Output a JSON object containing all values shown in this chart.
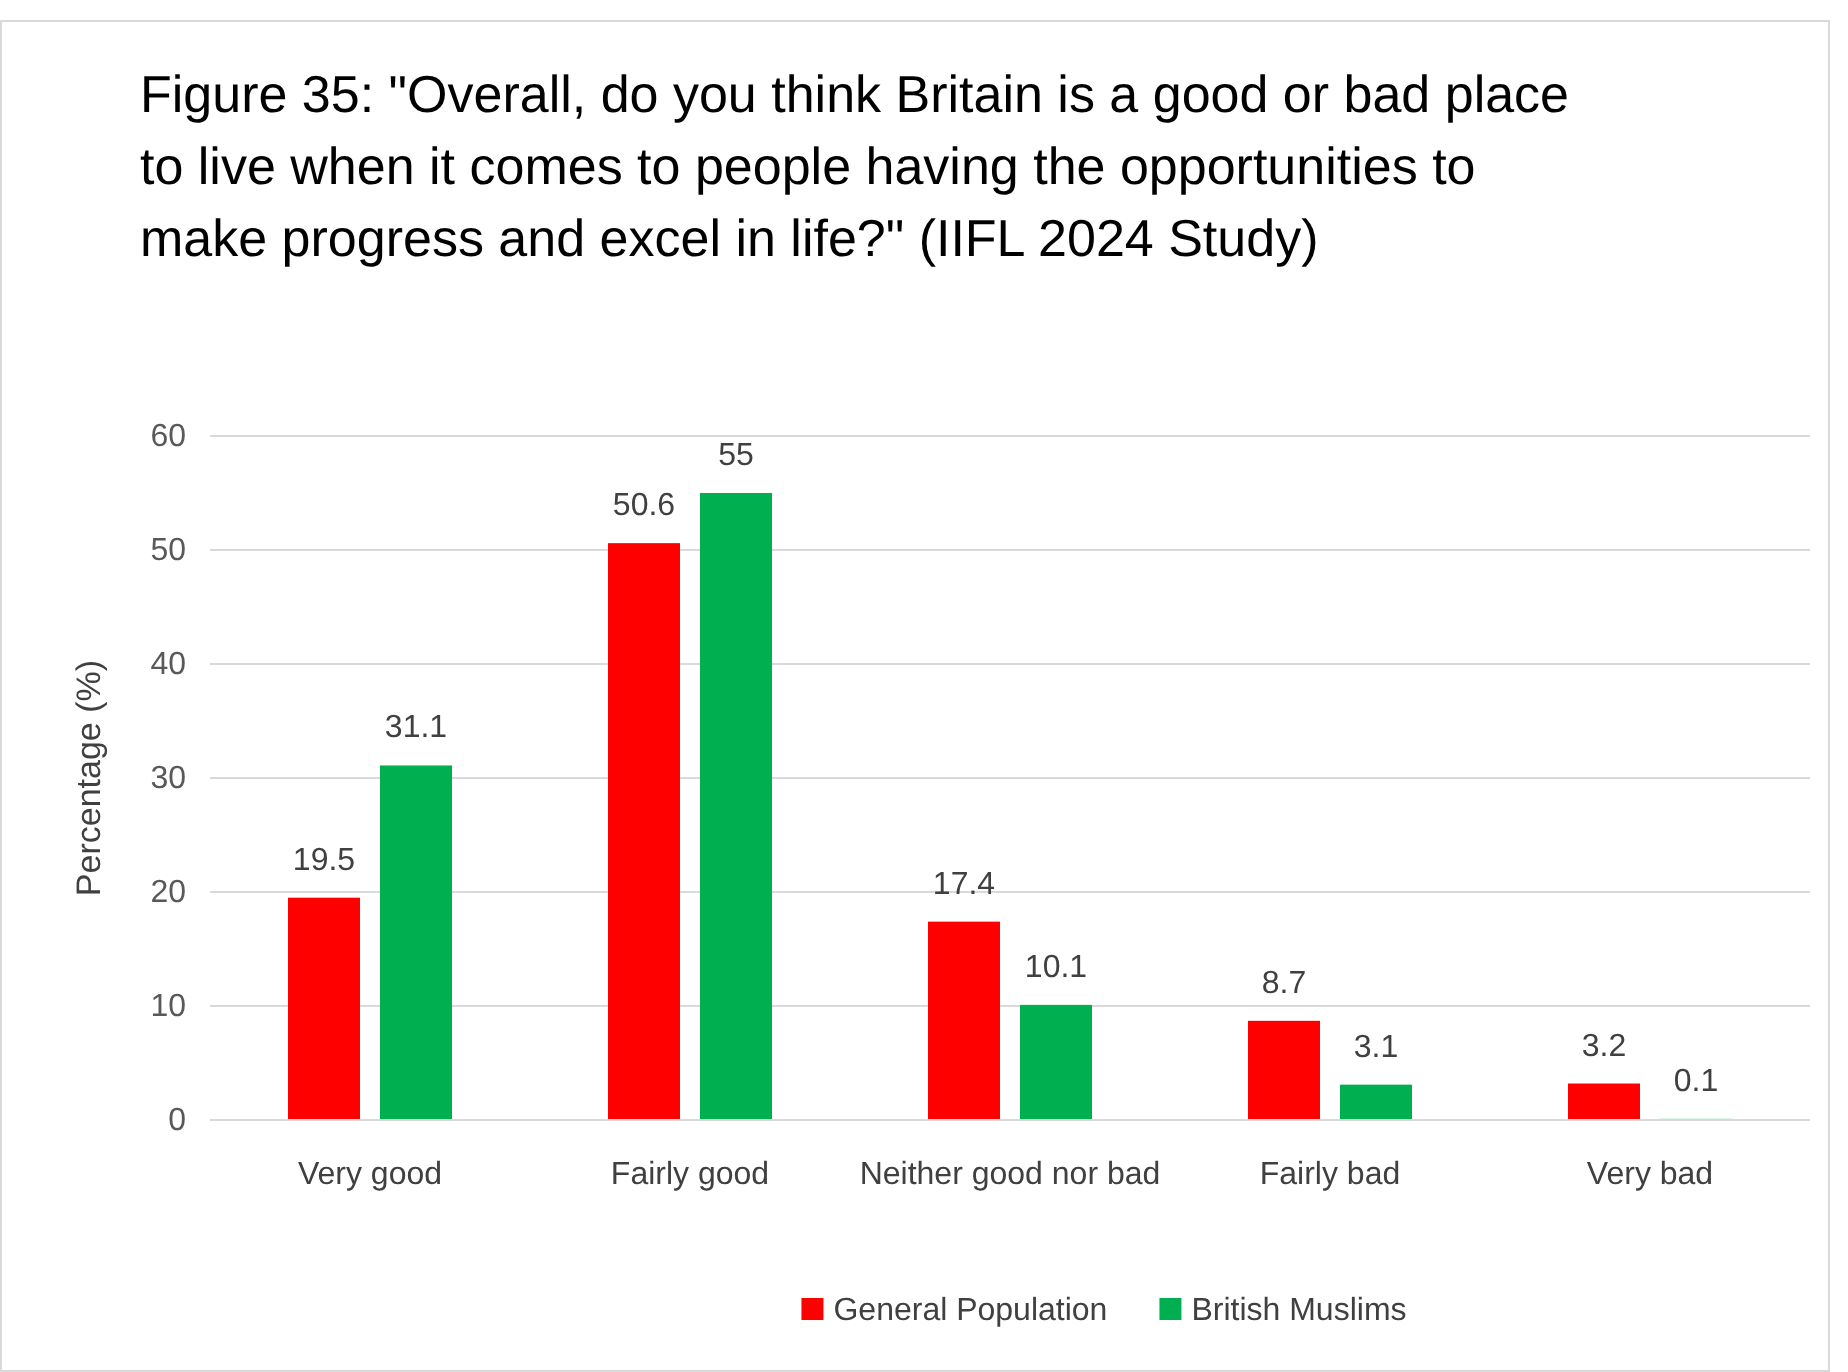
{
  "chart_data": {
    "type": "bar",
    "title": "Figure 35: \"Overall, do you think Britain is a good or bad place to live when it comes to people having the opportunities to make progress and excel in life?\" (IIFL 2024 Study)",
    "ylabel": "Percentage (%)",
    "categories": [
      "Very good",
      "Fairly good",
      "Neither good nor bad",
      "Fairly bad",
      "Very bad"
    ],
    "series": [
      {
        "name": "General Population",
        "color": "#ff0000",
        "values": [
          19.5,
          50.6,
          17.4,
          8.7,
          3.2
        ]
      },
      {
        "name": "British Muslims",
        "color": "#00b050",
        "values": [
          31.1,
          55,
          10.1,
          3.1,
          0.1
        ]
      }
    ],
    "ylim": [
      0,
      60
    ],
    "yticks": [
      0,
      10,
      20,
      30,
      40,
      50,
      60
    ],
    "grid": "y",
    "legend": "bottom",
    "data_labels": true
  }
}
